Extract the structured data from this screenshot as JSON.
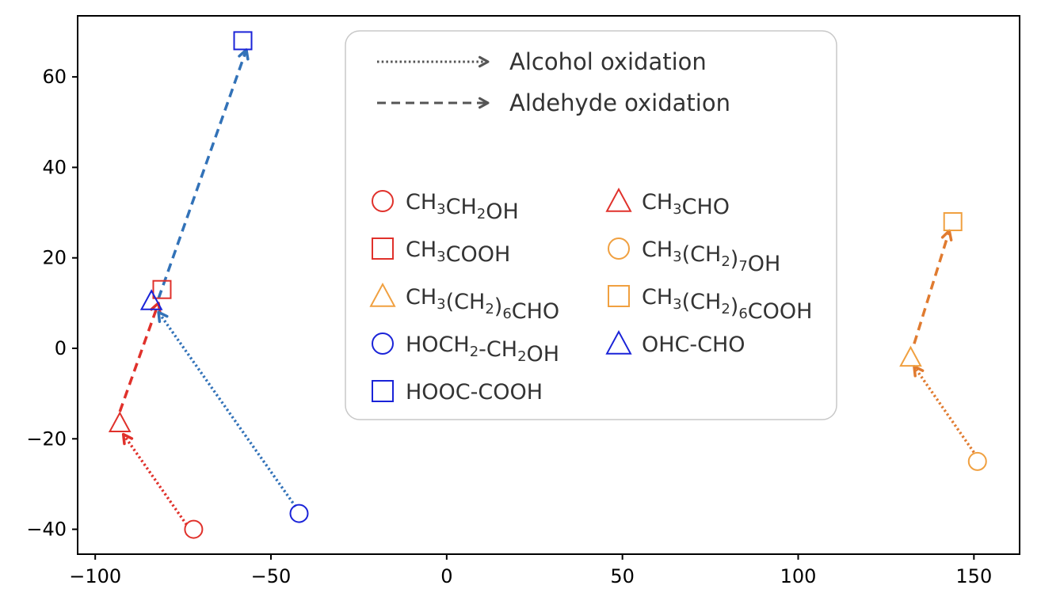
{
  "chart_data": {
    "type": "scatter",
    "title": "",
    "xlabel": "",
    "ylabel": "",
    "xlim": [
      -105,
      163
    ],
    "ylim": [
      -45.5,
      73.5
    ],
    "x_ticks": [
      -100,
      -50,
      0,
      50,
      100,
      150
    ],
    "y_ticks": [
      -40,
      -20,
      0,
      20,
      40,
      60
    ],
    "x_tick_labels": [
      "−100",
      "−50",
      "0",
      "50",
      "100",
      "150"
    ],
    "y_tick_labels": [
      "−40",
      "−20",
      "0",
      "20",
      "40",
      "60"
    ],
    "grid": false,
    "colors": {
      "red": "#e0312b",
      "orange": "#f0a040",
      "blue": "#1a23d8",
      "arrow_red": "#e0312b",
      "arrow_blue": "#3272b8",
      "arrow_orange": "#e07b30",
      "legend_line": "#555555"
    },
    "points": [
      {
        "name": "CH3CH2OH",
        "shape": "circle",
        "color": "red",
        "x": -72,
        "y": -40
      },
      {
        "name": "CH3CHO",
        "shape": "triangle",
        "color": "red",
        "x": -93,
        "y": -16.5
      },
      {
        "name": "CH3COOH",
        "shape": "square",
        "color": "red",
        "x": -81,
        "y": 13
      },
      {
        "name": "CH3(CH2)7OH",
        "shape": "circle",
        "color": "orange",
        "x": 151,
        "y": -25
      },
      {
        "name": "CH3(CH2)6CHO",
        "shape": "triangle",
        "color": "orange",
        "x": 132,
        "y": -2
      },
      {
        "name": "CH3(CH2)6COOH",
        "shape": "square",
        "color": "orange",
        "x": 144,
        "y": 28
      },
      {
        "name": "HOCH2-CH2OH",
        "shape": "circle",
        "color": "blue",
        "x": -42,
        "y": -36.5
      },
      {
        "name": "OHC-CHO",
        "shape": "triangle",
        "color": "blue",
        "x": -84,
        "y": 10.5
      },
      {
        "name": "HOOC-COOH",
        "shape": "square",
        "color": "blue",
        "x": -58,
        "y": 68
      }
    ],
    "arrows": [
      {
        "kind": "alcohol",
        "color": "arrow_red",
        "from": [
          -74,
          -39
        ],
        "to": [
          -92,
          -19
        ]
      },
      {
        "kind": "aldehyde",
        "color": "arrow_red",
        "from": [
          -93,
          -14
        ],
        "to": [
          -82,
          10
        ]
      },
      {
        "kind": "alcohol",
        "color": "arrow_blue",
        "from": [
          -43,
          -35
        ],
        "to": [
          -82,
          8
        ]
      },
      {
        "kind": "aldehyde",
        "color": "arrow_blue",
        "from": [
          -82,
          11
        ],
        "to": [
          -57,
          66
        ]
      },
      {
        "kind": "alcohol",
        "color": "arrow_orange",
        "from": [
          150,
          -23
        ],
        "to": [
          133,
          -4
        ]
      },
      {
        "kind": "aldehyde",
        "color": "arrow_orange",
        "from": [
          133,
          1
        ],
        "to": [
          143,
          26
        ]
      }
    ],
    "legend": {
      "placement": "top-center",
      "line_entries": [
        {
          "kind": "alcohol",
          "label": "Alcohol oxidation"
        },
        {
          "kind": "aldehyde",
          "label": "Aldehyde oxidation"
        }
      ],
      "marker_entries": [
        {
          "shape": "circle",
          "color": "red",
          "label": "CH3CH2OH",
          "parts": [
            [
              "CH",
              ""
            ],
            [
              "3",
              "sub"
            ],
            [
              "CH",
              ""
            ],
            [
              "2",
              "sub"
            ],
            [
              "OH",
              ""
            ]
          ]
        },
        {
          "shape": "triangle",
          "color": "red",
          "label": "CH3CHO",
          "parts": [
            [
              "CH",
              ""
            ],
            [
              "3",
              "sub"
            ],
            [
              "CHO",
              ""
            ]
          ]
        },
        {
          "shape": "square",
          "color": "red",
          "label": "CH3COOH",
          "parts": [
            [
              "CH",
              ""
            ],
            [
              "3",
              "sub"
            ],
            [
              "COOH",
              ""
            ]
          ]
        },
        {
          "shape": "circle",
          "color": "orange",
          "label": "CH3(CH2)7OH",
          "parts": [
            [
              "CH",
              ""
            ],
            [
              "3",
              "sub"
            ],
            [
              "(CH",
              ""
            ],
            [
              "2",
              "sub"
            ],
            [
              ")",
              ""
            ],
            [
              "7",
              "sub"
            ],
            [
              "OH",
              ""
            ]
          ]
        },
        {
          "shape": "triangle",
          "color": "orange",
          "label": "CH3(CH2)6CHO",
          "parts": [
            [
              "CH",
              ""
            ],
            [
              "3",
              "sub"
            ],
            [
              "(CH",
              ""
            ],
            [
              "2",
              "sub"
            ],
            [
              ")",
              ""
            ],
            [
              "6",
              "sub"
            ],
            [
              "CHO",
              ""
            ]
          ]
        },
        {
          "shape": "square",
          "color": "orange",
          "label": "CH3(CH2)6COOH",
          "parts": [
            [
              "CH",
              ""
            ],
            [
              "3",
              "sub"
            ],
            [
              "(CH",
              ""
            ],
            [
              "2",
              "sub"
            ],
            [
              ")",
              ""
            ],
            [
              "6",
              "sub"
            ],
            [
              "COOH",
              ""
            ]
          ]
        },
        {
          "shape": "circle",
          "color": "blue",
          "label": "HOCH2-CH2OH",
          "parts": [
            [
              "HOCH",
              ""
            ],
            [
              "2",
              "sub"
            ],
            [
              "-CH",
              ""
            ],
            [
              "2",
              "sub"
            ],
            [
              "OH",
              ""
            ]
          ]
        },
        {
          "shape": "triangle",
          "color": "blue",
          "label": "OHC-CHO",
          "parts": [
            [
              "OHC-CHO",
              ""
            ]
          ]
        },
        {
          "shape": "square",
          "color": "blue",
          "label": "HOOC-COOH",
          "parts": [
            [
              "HOOC-COOH",
              ""
            ]
          ]
        }
      ]
    }
  }
}
